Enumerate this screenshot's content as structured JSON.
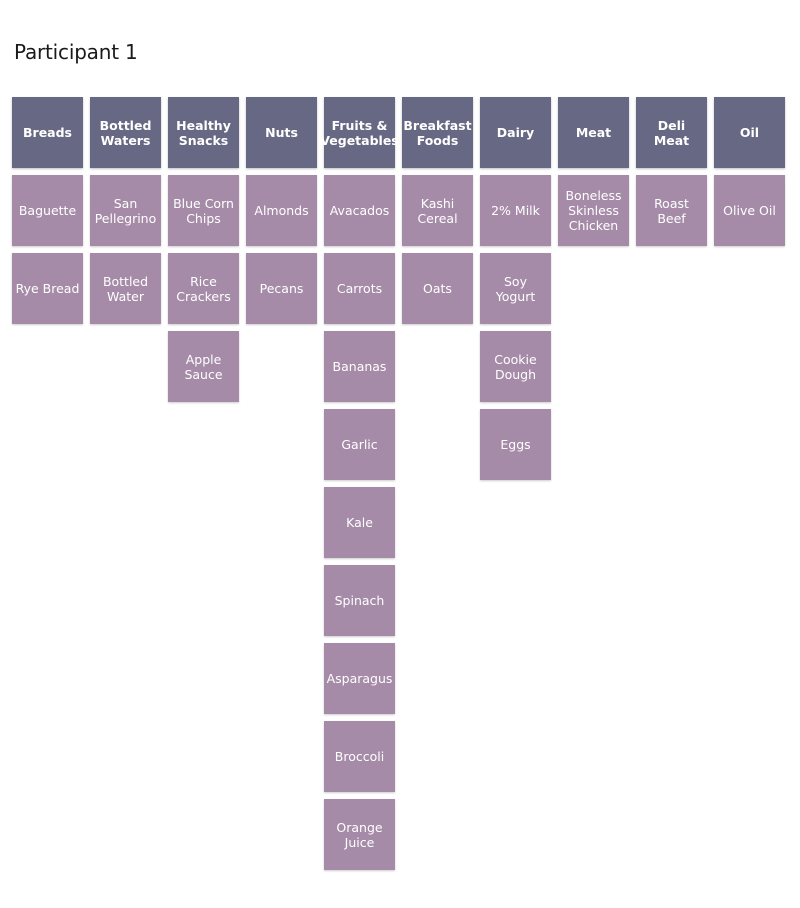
{
  "title": "Participant 1",
  "colors": {
    "header": "#676883",
    "item": "#a68ba8",
    "text": "#ffffff"
  },
  "categories": [
    {
      "label": "Breads",
      "items": [
        "Baguette",
        "Rye Bread"
      ]
    },
    {
      "label": "Bottled Waters",
      "items": [
        "San Pellegrino",
        "Bottled Water"
      ]
    },
    {
      "label": "Healthy Snacks",
      "items": [
        "Blue Corn Chips",
        "Rice Crackers",
        "Apple Sauce"
      ]
    },
    {
      "label": "Nuts",
      "items": [
        "Almonds",
        "Pecans"
      ]
    },
    {
      "label": "Fruits & Vegetables",
      "items": [
        "Avacados",
        "Carrots",
        "Bananas",
        "Garlic",
        "Kale",
        "Spinach",
        "Asparagus",
        "Broccoli",
        "Orange Juice"
      ]
    },
    {
      "label": "Breakfast Foods",
      "items": [
        "Kashi Cereal",
        "Oats"
      ]
    },
    {
      "label": "Dairy",
      "items": [
        "2% Milk",
        "Soy Yogurt",
        "Cookie Dough",
        "Eggs"
      ]
    },
    {
      "label": "Meat",
      "items": [
        "Boneless Skinless Chicken"
      ]
    },
    {
      "label": "Deli Meat",
      "items": [
        "Roast Beef"
      ]
    },
    {
      "label": "Oil",
      "items": [
        "Olive Oil"
      ]
    }
  ]
}
